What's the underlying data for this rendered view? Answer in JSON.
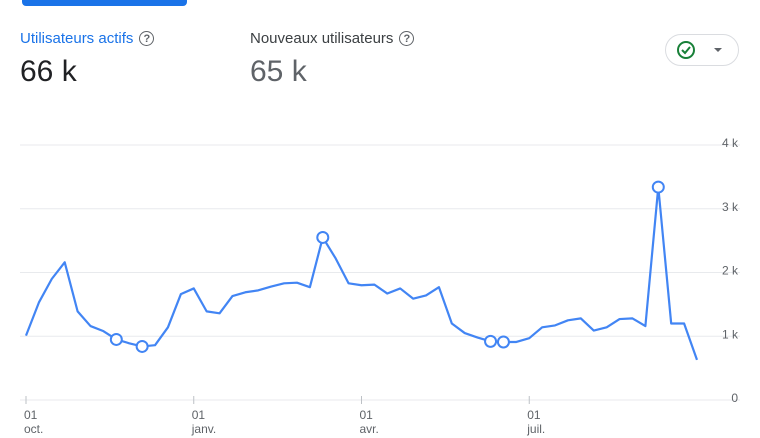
{
  "metrics": [
    {
      "label": "Utilisateurs actifs",
      "value": "66 k"
    },
    {
      "label": "Nouveaux utilisateurs",
      "value": "65 k"
    }
  ],
  "chart_data": {
    "type": "line",
    "categories": [
      "01\noct.",
      null,
      null,
      null,
      null,
      null,
      null,
      null,
      null,
      null,
      null,
      null,
      null,
      "01\njanv.",
      null,
      null,
      null,
      null,
      null,
      null,
      null,
      null,
      null,
      null,
      null,
      null,
      "01\navr.",
      null,
      null,
      null,
      null,
      null,
      null,
      null,
      null,
      null,
      null,
      null,
      null,
      "01\njuil.",
      null,
      null,
      null,
      null,
      null,
      null,
      null,
      null,
      null,
      null,
      null,
      null,
      null
    ],
    "series": [
      {
        "name": "Utilisateurs actifs",
        "color": "#4285f4",
        "values": [
          1010,
          1530,
          1900,
          2160,
          1390,
          1160,
          1080,
          950,
          890,
          840,
          860,
          1140,
          1660,
          1750,
          1390,
          1360,
          1630,
          1690,
          1720,
          1780,
          1830,
          1840,
          1770,
          2550,
          2220,
          1830,
          1800,
          1810,
          1670,
          1750,
          1590,
          1640,
          1770,
          1200,
          1050,
          980,
          920,
          910,
          910,
          970,
          1140,
          1170,
          1250,
          1280,
          1090,
          1140,
          1270,
          1280,
          1160,
          3340,
          1200,
          1200,
          630
        ],
        "highlighted": [
          7,
          9,
          23,
          36,
          37,
          49
        ]
      }
    ],
    "ylim": [
      0,
      4000
    ],
    "yticks": [
      0,
      {
        "value": 1000,
        "label": "1 k"
      },
      {
        "value": 2000,
        "label": "2 k"
      },
      {
        "value": 3000,
        "label": "3 k"
      },
      {
        "value": 4000,
        "label": "4 k"
      }
    ],
    "grid": true
  }
}
